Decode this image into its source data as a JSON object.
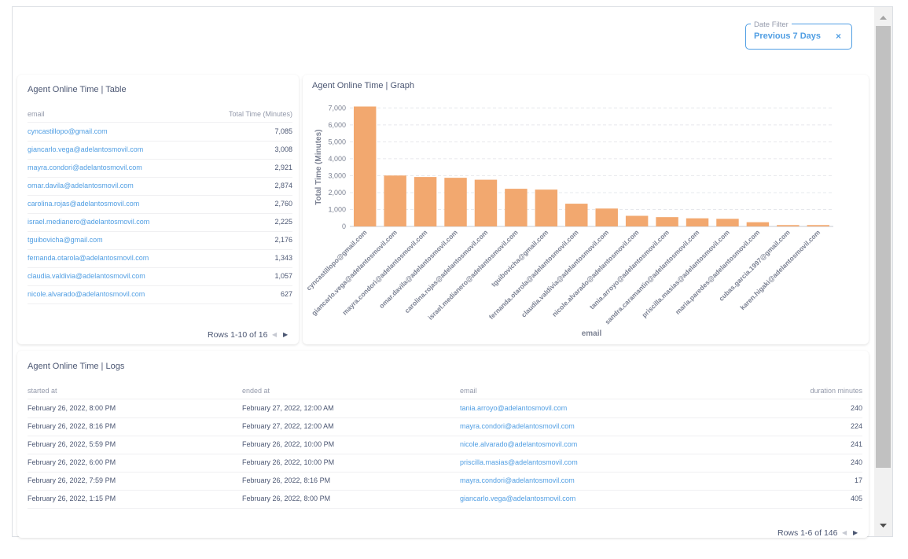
{
  "filter": {
    "label": "Date Filter",
    "value": "Previous 7 Days"
  },
  "table": {
    "title": "Agent Online Time | Table",
    "columns": [
      "email",
      "Total Time (Minutes)"
    ],
    "rows": [
      [
        "cyncastillopo@gmail.com",
        "7,085"
      ],
      [
        "giancarlo.vega@adelantosmovil.com",
        "3,008"
      ],
      [
        "mayra.condori@adelantosmovil.com",
        "2,921"
      ],
      [
        "omar.davila@adelantosmovil.com",
        "2,874"
      ],
      [
        "carolina.rojas@adelantosmovil.com",
        "2,760"
      ],
      [
        "israel.medianero@adelantosmovil.com",
        "2,225"
      ],
      [
        "tguibovicha@gmail.com",
        "2,176"
      ],
      [
        "fernanda.otarola@adelantosmovil.com",
        "1,343"
      ],
      [
        "claudia.valdivia@adelantosmovil.com",
        "1,057"
      ],
      [
        "nicole.alvarado@adelantosmovil.com",
        "627"
      ]
    ],
    "footer": "Rows 1-10 of 16"
  },
  "chart_data": {
    "type": "bar",
    "title": "Agent Online Time | Graph",
    "xlabel": "email",
    "ylabel": "Total Time (Minutes)",
    "color": "#f2a86f",
    "categories": [
      "cyncastillopo@gmail.com",
      "giancarlo.vega@adelantosmovil.com",
      "mayra.condori@adelantosmovil.com",
      "omar.davila@adelantosmovil.com",
      "carolina.rojas@adelantosmovil.com",
      "israel.medianero@adelantosmovil.com",
      "tguibovicha@gmail.com",
      "fernanda.otarola@adelantosmovil.com",
      "claudia.valdivia@adelantosmovil.com",
      "nicole.alvarado@adelantosmovil.com",
      "tania.arroyo@adelantosmovil.com",
      "sandra.caramantin@adelantosmovil.com",
      "priscilla.masias@adelantosmovil.com",
      "maria.paredes@adelantosmovil.com",
      "cubas.garcia.1997@gmail.com",
      "karen.higaki@adelantosmovil.com"
    ],
    "values": [
      7085,
      3008,
      2921,
      2874,
      2760,
      2225,
      2176,
      1343,
      1057,
      627,
      550,
      480,
      450,
      250,
      80,
      80
    ],
    "ylim": [
      0,
      7200
    ],
    "yticks": [
      0,
      {
        "value": 1000,
        "label": "1,000"
      },
      {
        "value": 2000,
        "label": "2,000"
      },
      {
        "value": 3000,
        "label": "3,000"
      },
      {
        "value": 4000,
        "label": "4,000"
      },
      {
        "value": 5000,
        "label": "5,000"
      },
      {
        "value": 6000,
        "label": "6,000"
      },
      {
        "value": 7000,
        "label": "7,000"
      }
    ],
    "grid": true
  },
  "logs": {
    "title": "Agent Online Time | Logs",
    "columns": [
      "started at",
      "ended at",
      "email",
      "duration minutes"
    ],
    "rows": [
      [
        "February 26, 2022, 8:00 PM",
        "February 27, 2022, 12:00 AM",
        "tania.arroyo@adelantosmovil.com",
        "240"
      ],
      [
        "February 26, 2022, 8:16 PM",
        "February 27, 2022, 12:00 AM",
        "mayra.condori@adelantosmovil.com",
        "224"
      ],
      [
        "February 26, 2022, 5:59 PM",
        "February 26, 2022, 10:00 PM",
        "nicole.alvarado@adelantosmovil.com",
        "241"
      ],
      [
        "February 26, 2022, 6:00 PM",
        "February 26, 2022, 10:00 PM",
        "priscilla.masias@adelantosmovil.com",
        "240"
      ],
      [
        "February 26, 2022, 7:59 PM",
        "February 26, 2022, 8:16 PM",
        "mayra.condori@adelantosmovil.com",
        "17"
      ],
      [
        "February 26, 2022, 1:15 PM",
        "February 26, 2022, 8:00 PM",
        "giancarlo.vega@adelantosmovil.com",
        "405"
      ]
    ],
    "footer": "Rows 1-6 of 146"
  }
}
